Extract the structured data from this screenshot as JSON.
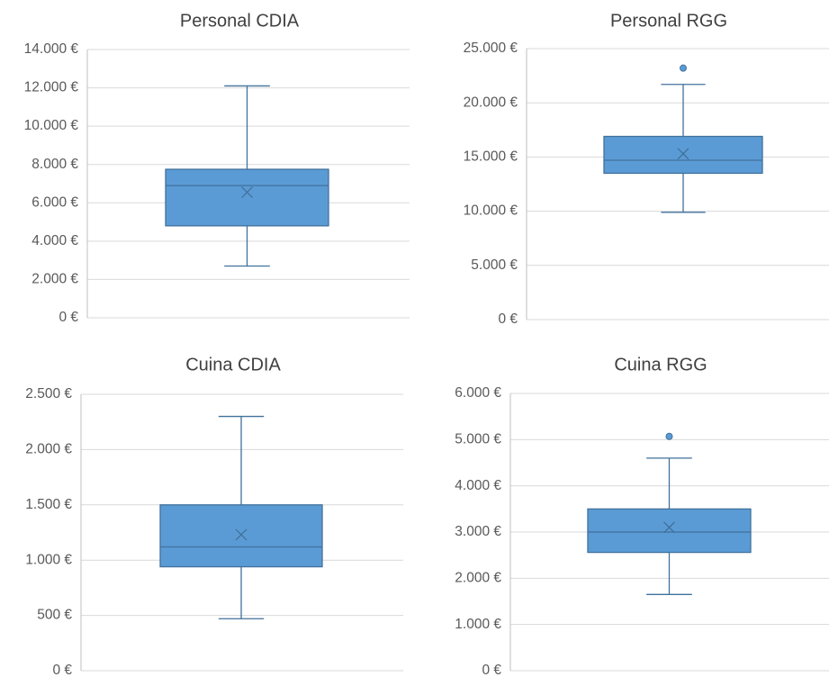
{
  "chart_data": [
    {
      "type": "box",
      "title": "Personal CDIA",
      "color": "#5b9bd5",
      "ylim": [
        0,
        14000
      ],
      "yticks": [
        {
          "value": 0,
          "label": "0 €"
        },
        {
          "value": 2000,
          "label": "2.000 €"
        },
        {
          "value": 4000,
          "label": "4.000 €"
        },
        {
          "value": 6000,
          "label": "6.000 €"
        },
        {
          "value": 8000,
          "label": "8.000 €"
        },
        {
          "value": 10000,
          "label": "10.000 €"
        },
        {
          "value": 12000,
          "label": "12.000 €"
        },
        {
          "value": 14000,
          "label": "14.000 €"
        }
      ],
      "grid": true,
      "boxes": [
        {
          "min": 2700,
          "q1": 4800,
          "median": 6900,
          "q3": 7750,
          "max": 12100,
          "mean": 6550
        }
      ]
    },
    {
      "type": "box",
      "title": "Personal RGG",
      "color": "#5b9bd5",
      "ylim": [
        0,
        25000
      ],
      "yticks": [
        {
          "value": 0,
          "label": "0 €"
        },
        {
          "value": 5000,
          "label": "5.000 €"
        },
        {
          "value": 10000,
          "label": "10.000 €"
        },
        {
          "value": 15000,
          "label": "15.000 €"
        },
        {
          "value": 20000,
          "label": "20.000 €"
        },
        {
          "value": 25000,
          "label": "25.000 €"
        }
      ],
      "grid": true,
      "boxes": [
        {
          "min": 9900,
          "q1": 13500,
          "median": 14700,
          "q3": 16900,
          "max": 21700,
          "mean": 15300,
          "outliers": [
            23200
          ]
        }
      ]
    },
    {
      "type": "box",
      "title": "Cuina CDIA",
      "color": "#5b9bd5",
      "ylim": [
        0,
        2500
      ],
      "yticks": [
        {
          "value": 0,
          "label": "0 €"
        },
        {
          "value": 500,
          "label": "500 €"
        },
        {
          "value": 1000,
          "label": "1.000 €"
        },
        {
          "value": 1500,
          "label": "1.500 €"
        },
        {
          "value": 2000,
          "label": "2.000 €"
        },
        {
          "value": 2500,
          "label": "2.500 €"
        }
      ],
      "grid": true,
      "boxes": [
        {
          "min": 470,
          "q1": 940,
          "median": 1120,
          "q3": 1500,
          "max": 2300,
          "mean": 1230
        }
      ]
    },
    {
      "type": "box",
      "title": "Cuina RGG",
      "color": "#5b9bd5",
      "ylim": [
        0,
        6000
      ],
      "yticks": [
        {
          "value": 0,
          "label": "0 €"
        },
        {
          "value": 1000,
          "label": "1.000 €"
        },
        {
          "value": 2000,
          "label": "2.000 €"
        },
        {
          "value": 3000,
          "label": "3.000 €"
        },
        {
          "value": 4000,
          "label": "4.000 €"
        },
        {
          "value": 5000,
          "label": "5.000 €"
        },
        {
          "value": 6000,
          "label": "6.000 €"
        }
      ],
      "grid": true,
      "boxes": [
        {
          "min": 1650,
          "q1": 2560,
          "median": 3000,
          "q3": 3500,
          "max": 4600,
          "mean": 3100,
          "outliers": [
            5070
          ]
        }
      ]
    }
  ]
}
